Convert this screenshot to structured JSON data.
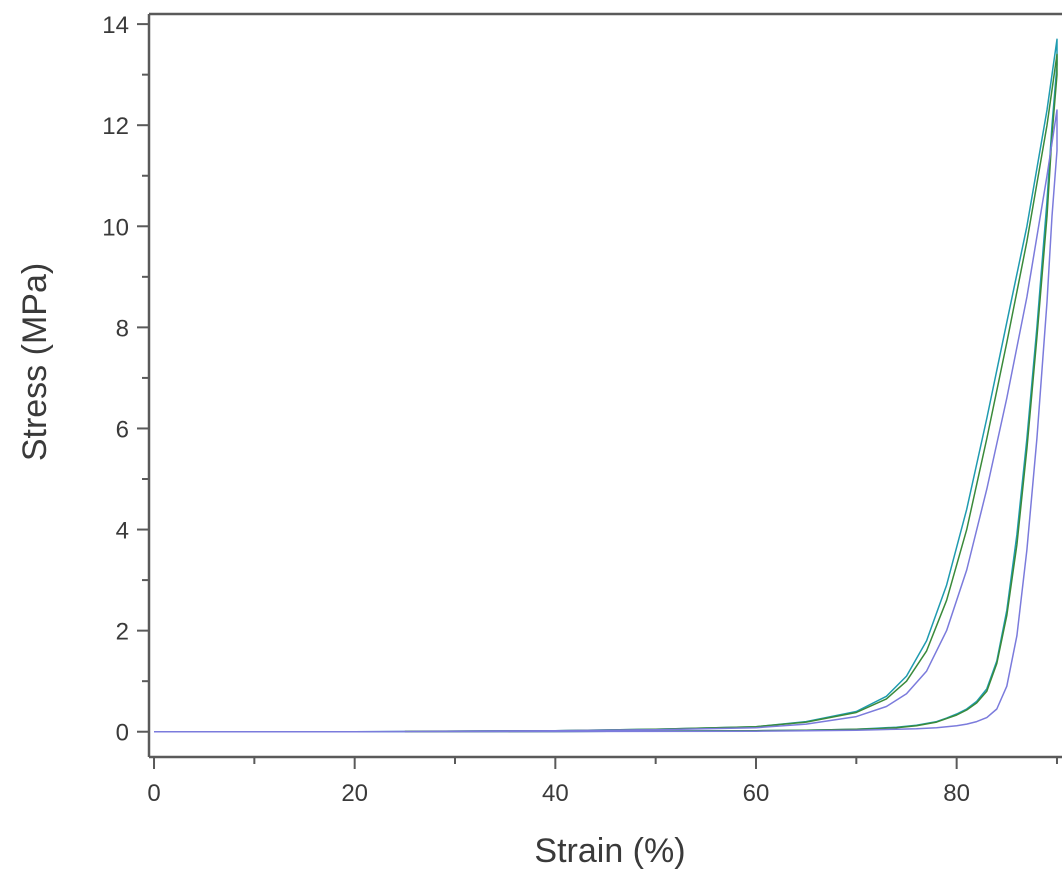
{
  "chart_data": {
    "type": "line",
    "title": "",
    "xlabel": "Strain (%)",
    "ylabel": "Stress (MPa)",
    "xlim": [
      -0.5,
      90.5
    ],
    "ylim": [
      -0.5,
      14.2
    ],
    "x_ticks": [
      0,
      20,
      40,
      60,
      80
    ],
    "x_tick_labels": [
      "0",
      "20",
      "40",
      "60",
      "80"
    ],
    "y_ticks": [
      0,
      2,
      4,
      6,
      8,
      10,
      12,
      14
    ],
    "y_tick_labels": [
      "0",
      "2",
      "4",
      "6",
      "8",
      "10",
      "12",
      "14"
    ],
    "grid": false,
    "legend": "none",
    "series": [
      {
        "color": "#1f9bb0",
        "x": [
          0,
          20,
          40,
          50,
          60,
          65,
          70,
          73,
          75,
          77,
          79,
          81,
          83,
          85,
          87,
          89,
          90,
          90,
          89.5,
          89,
          88,
          87,
          86,
          85,
          84,
          83,
          82,
          81,
          80,
          79,
          78,
          76,
          74,
          72,
          70,
          65,
          60,
          40,
          20,
          0
        ],
        "y": [
          0,
          0,
          0.02,
          0.05,
          0.1,
          0.2,
          0.4,
          0.7,
          1.1,
          1.8,
          2.9,
          4.4,
          6.2,
          8.1,
          10.0,
          12.3,
          13.7,
          13.2,
          12.0,
          10.5,
          8.0,
          5.8,
          3.9,
          2.4,
          1.4,
          0.85,
          0.6,
          0.45,
          0.35,
          0.27,
          0.2,
          0.13,
          0.09,
          0.07,
          0.05,
          0.03,
          0.02,
          0.005,
          0,
          0
        ]
      },
      {
        "color": "#3a8a3a",
        "x": [
          25,
          40,
          50,
          60,
          65,
          70,
          73,
          75,
          77,
          79,
          81,
          83,
          85,
          87,
          89,
          90,
          90,
          89.5,
          89,
          88,
          87,
          86,
          85,
          84,
          83,
          82,
          81,
          80,
          79,
          78,
          76,
          74,
          72,
          70,
          65,
          60,
          40,
          25
        ],
        "y": [
          0.01,
          0.02,
          0.05,
          0.1,
          0.19,
          0.38,
          0.65,
          1.0,
          1.6,
          2.6,
          4.0,
          5.8,
          7.7,
          9.7,
          12.0,
          13.4,
          13.0,
          11.8,
          10.2,
          7.8,
          5.6,
          3.7,
          2.3,
          1.35,
          0.8,
          0.57,
          0.43,
          0.33,
          0.26,
          0.19,
          0.12,
          0.08,
          0.06,
          0.05,
          0.03,
          0.02,
          0.005,
          0
        ]
      },
      {
        "color": "#7b7bdc",
        "x": [
          0,
          20,
          40,
          50,
          60,
          65,
          70,
          73,
          75,
          77,
          79,
          81,
          83,
          85,
          87,
          89,
          90,
          90,
          89.5,
          89,
          88,
          87,
          86,
          85,
          84,
          83,
          82,
          81,
          80,
          79,
          78,
          76,
          74,
          72,
          70,
          65,
          60,
          40,
          20,
          0
        ],
        "y": [
          0,
          0,
          0.02,
          0.04,
          0.08,
          0.15,
          0.3,
          0.5,
          0.75,
          1.2,
          2.0,
          3.2,
          4.8,
          6.6,
          8.6,
          11.0,
          12.3,
          11.5,
          10.2,
          8.5,
          5.8,
          3.6,
          1.9,
          0.9,
          0.45,
          0.28,
          0.2,
          0.15,
          0.12,
          0.1,
          0.08,
          0.06,
          0.05,
          0.04,
          0.03,
          0.02,
          0.01,
          0.005,
          0,
          0
        ]
      }
    ]
  }
}
